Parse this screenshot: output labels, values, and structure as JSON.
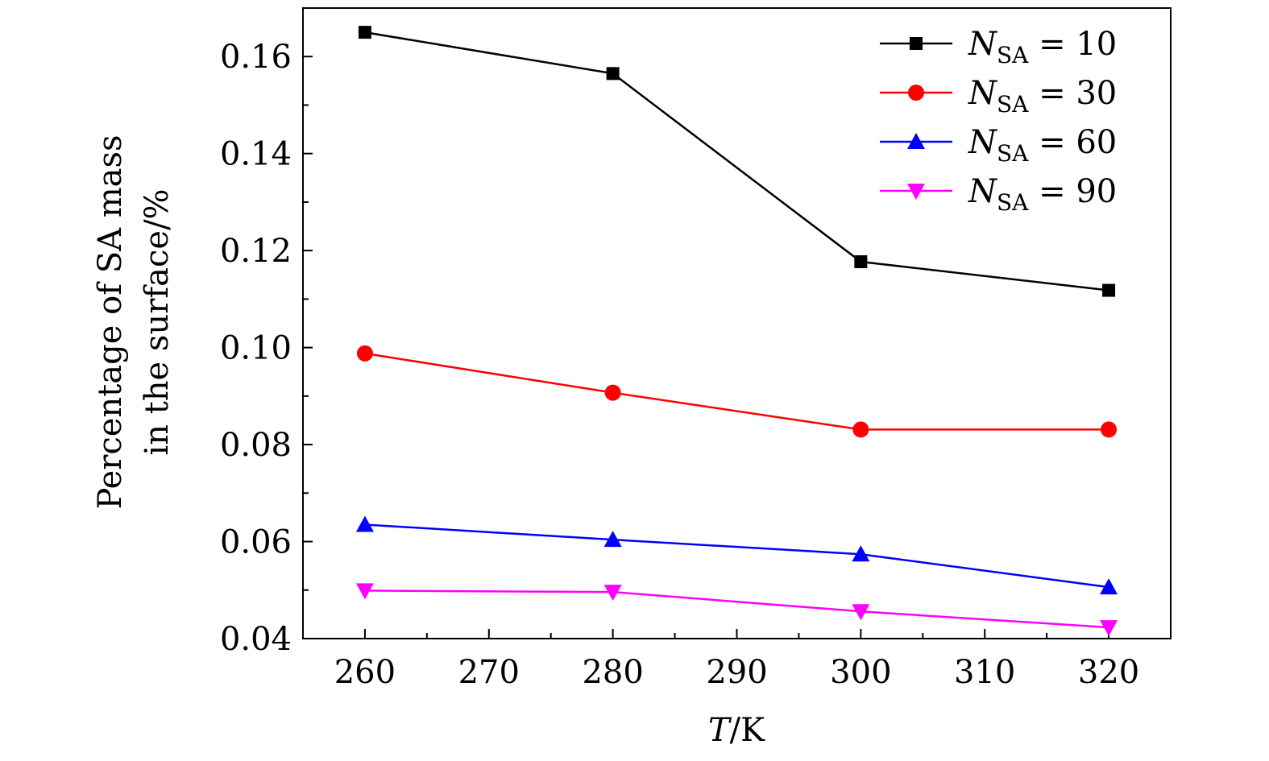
{
  "chart_data": {
    "type": "line",
    "title": "",
    "xlabel": "T/K",
    "ylabel_lines": [
      "Percentage of SA mass",
      "in the surface/%"
    ],
    "xlim": [
      255,
      325
    ],
    "ylim": [
      0.04,
      0.17
    ],
    "x_ticks": [
      260,
      270,
      280,
      290,
      300,
      310,
      320
    ],
    "x_tick_labels": [
      "260",
      "270",
      "280",
      "290",
      "300",
      "310",
      "320"
    ],
    "y_ticks": [
      0.04,
      0.06,
      0.08,
      0.1,
      0.12,
      0.14,
      0.16
    ],
    "y_tick_labels": [
      "0.04",
      "0.06",
      "0.08",
      "0.10",
      "0.12",
      "0.14",
      "0.16"
    ],
    "grid": false,
    "legend_placement": "top-right",
    "x": [
      260,
      280,
      300,
      320
    ],
    "series": [
      {
        "name": "N_SA = 10",
        "label_main": "N",
        "label_sub": "SA",
        "label_rest": " = 10",
        "color": "#000000",
        "marker": "square",
        "values": [
          0.165,
          0.1565,
          0.1177,
          0.1118
        ]
      },
      {
        "name": "N_SA = 30",
        "label_main": "N",
        "label_sub": "SA",
        "label_rest": " = 30",
        "color": "#ff0000",
        "marker": "circle",
        "values": [
          0.0988,
          0.0907,
          0.0831,
          0.0831
        ]
      },
      {
        "name": "N_SA = 60",
        "label_main": "N",
        "label_sub": "SA",
        "label_rest": " = 60",
        "color": "#0000ff",
        "marker": "triangle-up",
        "values": [
          0.0635,
          0.0604,
          0.0574,
          0.0506
        ]
      },
      {
        "name": "N_SA = 90",
        "label_main": "N",
        "label_sub": "SA",
        "label_rest": " = 90",
        "color": "#ff00ff",
        "marker": "triangle-down",
        "values": [
          0.0499,
          0.0496,
          0.0456,
          0.0423
        ]
      }
    ]
  }
}
